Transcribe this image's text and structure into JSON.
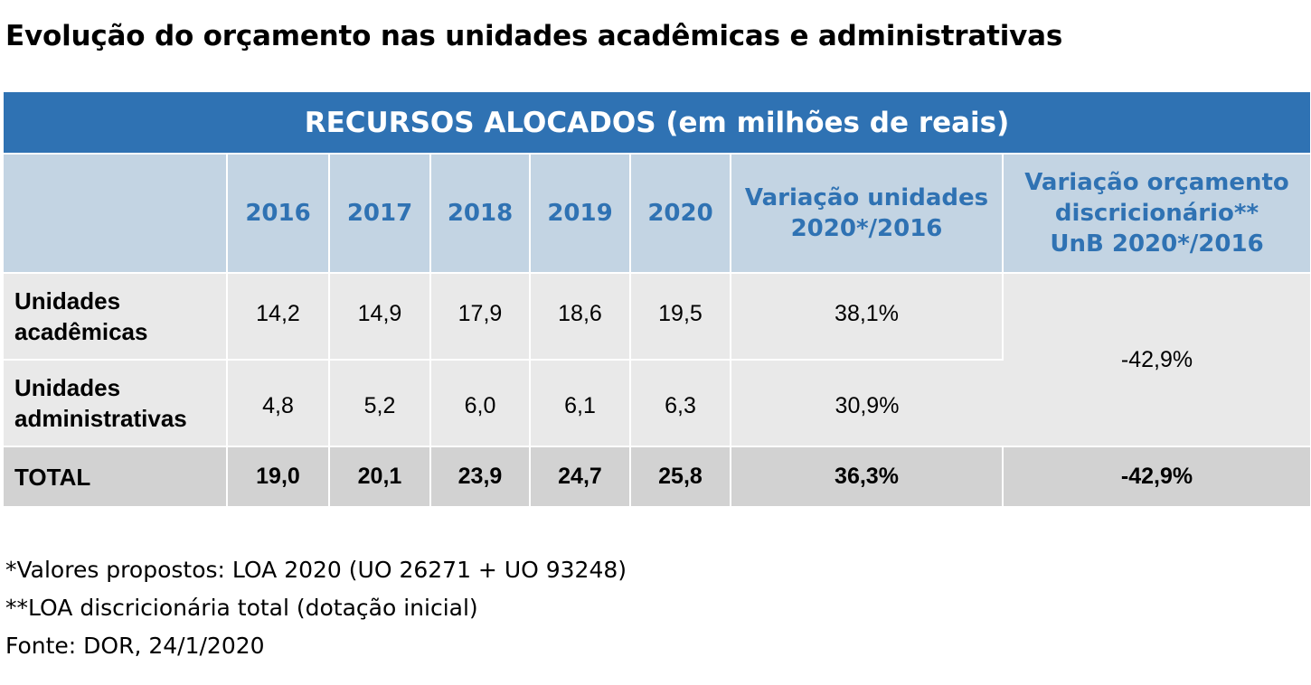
{
  "title": "Evolução do orçamento nas unidades acadêmicas e administrativas",
  "table": {
    "banner": "RECURSOS ALOCADOS (em milhões de reais)",
    "headers": {
      "years": [
        "2016",
        "2017",
        "2018",
        "2019",
        "2020"
      ],
      "variation_units": [
        "Variação unidades",
        "2020*/2016"
      ],
      "variation_budget": [
        "Variação orçamento",
        "discricionário**",
        "UnB 2020*/2016"
      ]
    },
    "rows": [
      {
        "label": [
          "Unidades",
          "acadêmicas"
        ],
        "values": [
          "14,2",
          "14,9",
          "17,9",
          "18,6",
          "19,5"
        ],
        "variation": "38,1%"
      },
      {
        "label": [
          "Unidades",
          "administrativas"
        ],
        "values": [
          "4,8",
          "5,2",
          "6,0",
          "6,1",
          "6,3"
        ],
        "variation": "30,9%"
      }
    ],
    "merged_budget_variation": "-42,9%",
    "total": {
      "label": "TOTAL",
      "values": [
        "19,0",
        "20,1",
        "23,9",
        "24,7",
        "25,8"
      ],
      "variation": "36,3%",
      "budget_variation": "-42,9%"
    }
  },
  "footnotes": [
    "*Valores propostos: LOA 2020 (UO 26271 + UO 93248)",
    "**LOA discricionária total (dotação inicial)",
    "Fonte: DOR, 24/1/2020"
  ],
  "colors": {
    "banner": "#2f72b3",
    "header_bg": "#c3d4e3",
    "header_text": "#2f72b3",
    "row_bg": "#e9e9e9",
    "total_bg": "#d2d2d2"
  }
}
